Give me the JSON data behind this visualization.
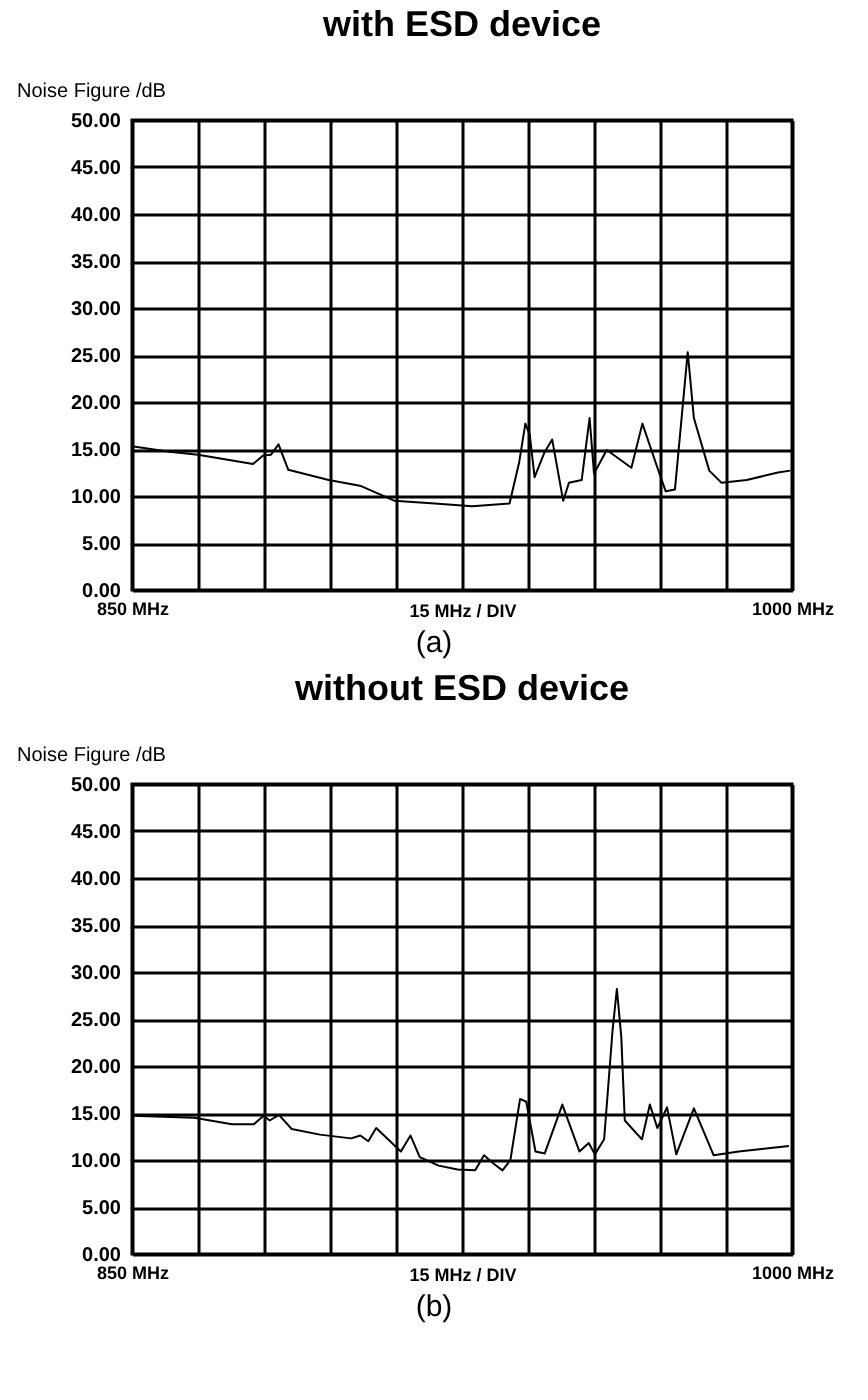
{
  "chart_data": [
    {
      "type": "line",
      "title": "with ESD device",
      "xlabel": "15 MHz / DIV",
      "ylabel": "Noise Figure /dB",
      "annotations": [
        "(a)"
      ],
      "grid": true,
      "x": [
        850,
        858.5,
        865,
        877.5,
        879.8,
        881.6,
        883.3,
        885.5,
        894.7,
        901.8,
        909.6,
        918.8,
        927.3,
        935.8,
        938,
        939.4,
        940.4,
        941.5,
        943.7,
        945.5,
        948,
        949.3,
        952.2,
        954,
        955,
        957.9,
        963.5,
        966,
        969.2,
        971.3,
        973.4,
        976.3,
        977.7,
        981.2,
        984,
        989.7,
        996.8,
        999.6
      ],
      "values": [
        15.3,
        14.7,
        14.4,
        13.4,
        14.3,
        14.4,
        15.5,
        12.8,
        11.7,
        11.1,
        9.5,
        9.2,
        8.9,
        9.2,
        13.6,
        17.7,
        16.5,
        12.0,
        14.6,
        16.0,
        9.5,
        11.4,
        11.7,
        18.3,
        12.4,
        14.9,
        13.0,
        17.7,
        13.3,
        10.5,
        10.7,
        25.3,
        18.3,
        12.7,
        11.4,
        11.7,
        12.5,
        12.7
      ],
      "color": "#000000",
      "xlim": [
        850,
        1000
      ],
      "xticks": [
        {
          "value": 850,
          "label": "850 MHz"
        },
        {
          "value": 865,
          "label": null
        },
        {
          "value": 880,
          "label": null
        },
        {
          "value": 895,
          "label": null
        },
        {
          "value": 910,
          "label": null
        },
        {
          "value": 925,
          "label": null
        },
        {
          "value": 940,
          "label": null
        },
        {
          "value": 955,
          "label": null
        },
        {
          "value": 970,
          "label": null
        },
        {
          "value": 985,
          "label": null
        },
        {
          "value": 1000,
          "label": "1000 MHz"
        }
      ],
      "ylim": [
        0,
        50
      ],
      "yticks": [
        {
          "value": 0,
          "label": "0.00"
        },
        {
          "value": 5,
          "label": "5.00"
        },
        {
          "value": 10,
          "label": "10.00"
        },
        {
          "value": 15,
          "label": "15.00"
        },
        {
          "value": 20,
          "label": "20.00"
        },
        {
          "value": 25,
          "label": "25.00"
        },
        {
          "value": 30,
          "label": "30.00"
        },
        {
          "value": 35,
          "label": "35.00"
        },
        {
          "value": 40,
          "label": "40.00"
        },
        {
          "value": 45,
          "label": "45.00"
        },
        {
          "value": 50,
          "label": "50.00"
        }
      ]
    },
    {
      "type": "line",
      "title": "without ESD device",
      "xlabel": "15 MHz / DIV",
      "ylabel": "Noise Figure /dB",
      "annotations": [
        "(b)"
      ],
      "grid": true,
      "x": [
        850,
        864.2,
        872.7,
        877.7,
        879.9,
        881.3,
        883.4,
        886.3,
        892.7,
        899.8,
        901.9,
        903.7,
        905.5,
        911.1,
        913.3,
        915.4,
        919.7,
        924,
        928,
        930,
        932.5,
        934.2,
        936,
        938.2,
        939.6,
        941.7,
        943.8,
        947.8,
        951.7,
        953.8,
        955.2,
        957.3,
        959.2,
        960.2,
        961.2,
        962,
        965.9,
        967.7,
        969.4,
        971.6,
        973.7,
        977.7,
        982.2,
        987.9,
        993.6,
        999.3
      ],
      "values": [
        14.7,
        14.5,
        13.8,
        13.8,
        14.7,
        14.2,
        14.8,
        13.3,
        12.7,
        12.3,
        12.6,
        12.0,
        13.4,
        10.9,
        12.6,
        10.3,
        9.4,
        9.0,
        8.9,
        10.5,
        9.5,
        8.9,
        10.0,
        16.5,
        16.2,
        10.9,
        10.7,
        15.9,
        10.9,
        11.8,
        10.6,
        12.2,
        23.7,
        28.2,
        23.1,
        14.2,
        12.2,
        15.9,
        13.4,
        15.6,
        10.6,
        15.5,
        10.5,
        10.9,
        11.2,
        11.5
      ],
      "color": "#000000",
      "xlim": [
        850,
        1000
      ],
      "xticks": [
        {
          "value": 850,
          "label": "850 MHz"
        },
        {
          "value": 865,
          "label": null
        },
        {
          "value": 880,
          "label": null
        },
        {
          "value": 895,
          "label": null
        },
        {
          "value": 910,
          "label": null
        },
        {
          "value": 925,
          "label": null
        },
        {
          "value": 940,
          "label": null
        },
        {
          "value": 955,
          "label": null
        },
        {
          "value": 970,
          "label": null
        },
        {
          "value": 985,
          "label": null
        },
        {
          "value": 1000,
          "label": "1000 MHz"
        }
      ],
      "ylim": [
        0,
        50
      ],
      "yticks": [
        {
          "value": 0,
          "label": "0.00"
        },
        {
          "value": 5,
          "label": "5.00"
        },
        {
          "value": 10,
          "label": "10.00"
        },
        {
          "value": 15,
          "label": "15.00"
        },
        {
          "value": 20,
          "label": "20.00"
        },
        {
          "value": 25,
          "label": "25.00"
        },
        {
          "value": 30,
          "label": "30.00"
        },
        {
          "value": 35,
          "label": "35.00"
        },
        {
          "value": 40,
          "label": "40.00"
        },
        {
          "value": 45,
          "label": "45.00"
        },
        {
          "value": 50,
          "label": "50.00"
        }
      ]
    }
  ]
}
